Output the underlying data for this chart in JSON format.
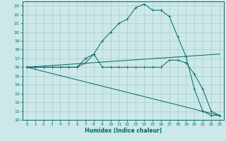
{
  "xlabel": "Humidex (Indice chaleur)",
  "xlim": [
    -0.5,
    23.5
  ],
  "ylim": [
    10,
    23.5
  ],
  "yticks": [
    10,
    11,
    12,
    13,
    14,
    15,
    16,
    17,
    18,
    19,
    20,
    21,
    22,
    23
  ],
  "xticks": [
    0,
    1,
    2,
    3,
    4,
    5,
    6,
    7,
    8,
    9,
    10,
    11,
    12,
    13,
    14,
    15,
    16,
    17,
    18,
    19,
    20,
    21,
    22,
    23
  ],
  "bg_color": "#cce8e8",
  "line_color": "#006666",
  "grid_color": "#aacccc",
  "lines": [
    {
      "x": [
        0,
        1,
        2,
        3,
        4,
        5,
        6,
        7,
        8,
        9,
        10,
        11,
        12,
        13,
        14,
        15,
        16,
        17,
        18,
        19,
        20,
        21,
        22,
        23
      ],
      "y": [
        16,
        16,
        16,
        16,
        16,
        16,
        16,
        16.5,
        17.5,
        19,
        20,
        21,
        21.5,
        22.8,
        23.2,
        22.5,
        22.5,
        21.8,
        19.5,
        17.2,
        13.5,
        11,
        10.5,
        10.5
      ],
      "marker": "+"
    },
    {
      "x": [
        0,
        1,
        2,
        3,
        4,
        5,
        6,
        7,
        8,
        9,
        10,
        11,
        12,
        13,
        14,
        15,
        16,
        17,
        18,
        19,
        20,
        21,
        22,
        23
      ],
      "y": [
        16,
        16,
        16,
        16,
        16,
        16,
        16,
        17,
        17.5,
        16,
        16,
        16,
        16,
        16,
        16,
        16,
        16,
        16.8,
        16.8,
        16.5,
        15.2,
        13.5,
        11,
        10.5
      ],
      "marker": "+"
    },
    {
      "x": [
        0,
        23
      ],
      "y": [
        16,
        17.5
      ],
      "marker": null
    },
    {
      "x": [
        0,
        23
      ],
      "y": [
        16,
        10.5
      ],
      "marker": null
    }
  ]
}
